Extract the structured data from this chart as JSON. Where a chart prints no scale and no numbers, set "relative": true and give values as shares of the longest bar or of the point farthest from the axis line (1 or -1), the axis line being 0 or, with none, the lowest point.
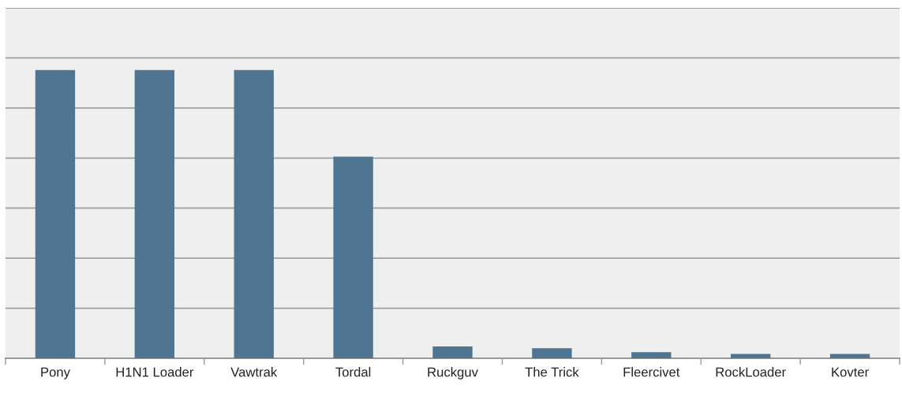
{
  "chart_data": {
    "type": "bar",
    "relative": true,
    "grid": "y",
    "color": "#4f7591",
    "categories": [
      "Pony",
      "H1N1 Loader",
      "Vawtrak",
      "Tordal",
      "Ruckguv",
      "The Trick",
      "Fleercivet",
      "RockLoader",
      "Kovter"
    ],
    "values": [
      1,
      1,
      1,
      0.7,
      0.041,
      0.035,
      0.021,
      0.015,
      0.015
    ]
  }
}
